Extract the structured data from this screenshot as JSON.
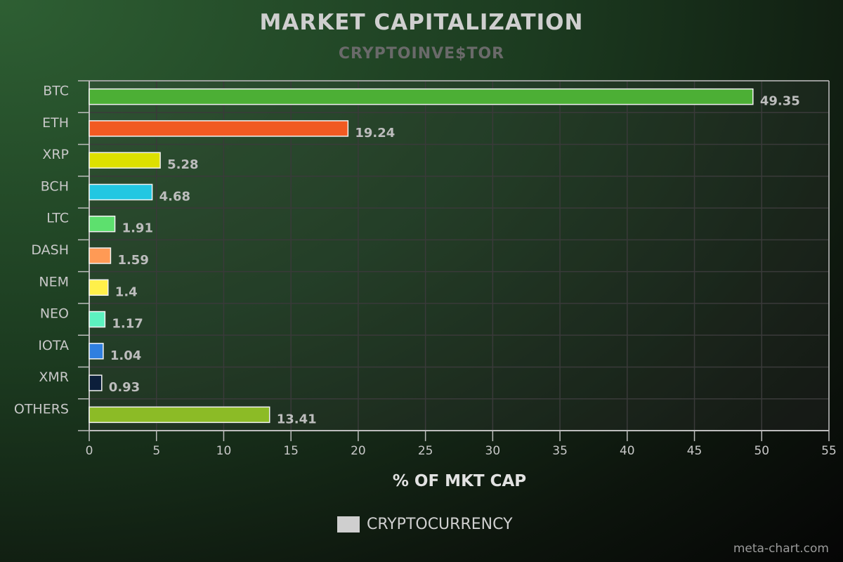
{
  "chart_data": {
    "type": "bar",
    "orientation": "horizontal",
    "title": "MARKET CAPITALIZATION",
    "subtitle": "CRYPTOINVE$TOR",
    "categories": [
      "BTC",
      "ETH",
      "XRP",
      "BCH",
      "LTC",
      "DASH",
      "NEM",
      "NEO",
      "IOTA",
      "XMR",
      "OTHERS"
    ],
    "values": [
      49.35,
      19.24,
      5.28,
      4.68,
      1.91,
      1.59,
      1.4,
      1.17,
      1.04,
      0.93,
      13.41
    ],
    "data_labels": [
      "49.35",
      "19.24",
      "5.28",
      "4.68",
      "1.91",
      "1.59",
      "1.4",
      "1.17",
      "1.04",
      "0.93",
      "13.41"
    ],
    "bar_colors": [
      "#4caf35",
      "#f15a22",
      "#dde000",
      "#22c7e2",
      "#5de06e",
      "#ff9a55",
      "#fff04a",
      "#5cf3c0",
      "#2f7fe0",
      "#0c1f3b",
      "#8cbb26"
    ],
    "xlabel": "% OF MKT CAP",
    "ylabel": "",
    "xlim": [
      0,
      55
    ],
    "x_ticks": [
      0,
      5,
      10,
      15,
      20,
      25,
      30,
      35,
      40,
      45,
      50,
      55
    ],
    "grid": true,
    "legend": [
      {
        "name": "CRYPTOCURRENCY",
        "color": "#cfcfcf"
      }
    ],
    "legend_placement": "bottom-center"
  },
  "credit": "meta-chart.com"
}
